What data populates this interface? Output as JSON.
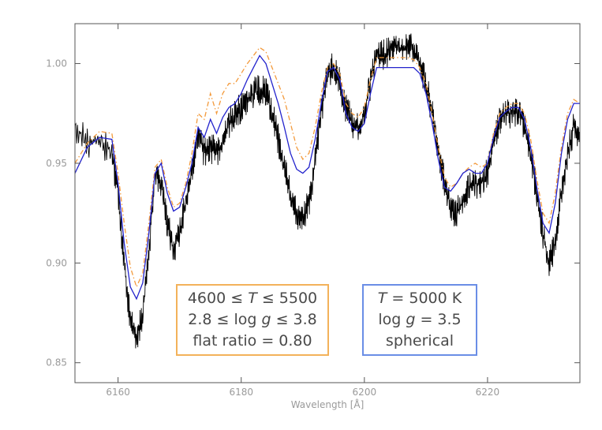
{
  "chart_data": {
    "type": "line",
    "title": "",
    "xlabel": "Wavelength [Å]",
    "ylabel": "",
    "xlim": [
      6153,
      6235
    ],
    "ylim": [
      0.84,
      1.02
    ],
    "grid": false,
    "xticks": [
      6160,
      6180,
      6200,
      6220
    ],
    "yticks": [
      0.85,
      0.9,
      0.95,
      1.0
    ],
    "xtick_labels": [
      "6160",
      "6180",
      "6200",
      "6220"
    ],
    "ytick_labels": [
      "0.85",
      "0.90",
      "0.95",
      "1.00"
    ],
    "series": [
      {
        "style": "solid-noisy",
        "color": "#000000",
        "x": [
          6153,
          6155,
          6157,
          6159,
          6160,
          6161,
          6162,
          6163,
          6164,
          6165,
          6166,
          6167,
          6168,
          6169,
          6170,
          6171,
          6172,
          6173,
          6174,
          6175,
          6176,
          6177,
          6178,
          6179,
          6180,
          6181,
          6182,
          6183,
          6184,
          6185,
          6186,
          6187,
          6188,
          6189,
          6190,
          6191,
          6192,
          6193,
          6194,
          6195,
          6196,
          6197,
          6198,
          6199,
          6200,
          6201,
          6202,
          6203,
          6204,
          6205,
          6206,
          6207,
          6208,
          6209,
          6210,
          6211,
          6212,
          6213,
          6214,
          6215,
          6216,
          6217,
          6218,
          6219,
          6220,
          6221,
          6222,
          6223,
          6224,
          6225,
          6226,
          6227,
          6228,
          6229,
          6230,
          6231,
          6232,
          6233,
          6234,
          6235
        ],
        "y": [
          0.969,
          0.96,
          0.962,
          0.955,
          0.935,
          0.9,
          0.87,
          0.862,
          0.875,
          0.905,
          0.945,
          0.94,
          0.92,
          0.907,
          0.915,
          0.93,
          0.945,
          0.965,
          0.955,
          0.958,
          0.955,
          0.96,
          0.97,
          0.975,
          0.978,
          0.981,
          0.985,
          0.987,
          0.986,
          0.975,
          0.962,
          0.948,
          0.934,
          0.924,
          0.922,
          0.93,
          0.95,
          0.975,
          0.995,
          0.998,
          0.99,
          0.978,
          0.97,
          0.968,
          0.975,
          0.99,
          1.005,
          1.004,
          1.006,
          1.008,
          1.007,
          1.009,
          1.007,
          1.0,
          0.99,
          0.975,
          0.958,
          0.94,
          0.928,
          0.925,
          0.93,
          0.938,
          0.94,
          0.94,
          0.945,
          0.96,
          0.972,
          0.975,
          0.975,
          0.975,
          0.97,
          0.955,
          0.935,
          0.915,
          0.9,
          0.91,
          0.935,
          0.955,
          0.968,
          0.965
        ]
      },
      {
        "style": "dash-dot",
        "color": "#f39a3c",
        "x": [
          6153,
          6155,
          6157,
          6159,
          6160,
          6161,
          6162,
          6163,
          6164,
          6165,
          6166,
          6167,
          6168,
          6169,
          6170,
          6171,
          6172,
          6173,
          6174,
          6175,
          6176,
          6177,
          6178,
          6179,
          6180,
          6181,
          6182,
          6183,
          6184,
          6185,
          6186,
          6187,
          6188,
          6189,
          6190,
          6191,
          6192,
          6193,
          6194,
          6195,
          6196,
          6197,
          6198,
          6199,
          6200,
          6201,
          6202,
          6203,
          6204,
          6205,
          6206,
          6207,
          6208,
          6209,
          6210,
          6211,
          6212,
          6213,
          6214,
          6215,
          6216,
          6217,
          6218,
          6219,
          6220,
          6221,
          6222,
          6223,
          6224,
          6225,
          6226,
          6227,
          6228,
          6229,
          6230,
          6231,
          6232,
          6233,
          6234,
          6235
        ],
        "y": [
          0.95,
          0.96,
          0.966,
          0.965,
          0.945,
          0.92,
          0.898,
          0.888,
          0.895,
          0.92,
          0.948,
          0.952,
          0.938,
          0.928,
          0.93,
          0.94,
          0.955,
          0.975,
          0.972,
          0.985,
          0.975,
          0.985,
          0.99,
          0.99,
          0.995,
          1.0,
          1.004,
          1.008,
          1.006,
          0.998,
          0.99,
          0.982,
          0.97,
          0.958,
          0.952,
          0.955,
          0.968,
          0.985,
          0.998,
          1.0,
          0.995,
          0.98,
          0.975,
          0.973,
          0.978,
          0.992,
          1.003,
          1.003,
          1.003,
          1.003,
          1.003,
          1.003,
          1.002,
          0.998,
          0.99,
          0.975,
          0.958,
          0.943,
          0.938,
          0.94,
          0.945,
          0.948,
          0.95,
          0.948,
          0.95,
          0.965,
          0.975,
          0.978,
          0.98,
          0.98,
          0.975,
          0.962,
          0.942,
          0.925,
          0.92,
          0.935,
          0.958,
          0.975,
          0.982,
          0.98
        ]
      },
      {
        "style": "solid",
        "color": "#2222cc",
        "x": [
          6153,
          6155,
          6157,
          6159,
          6160,
          6161,
          6162,
          6163,
          6164,
          6165,
          6166,
          6167,
          6168,
          6169,
          6170,
          6171,
          6172,
          6173,
          6174,
          6175,
          6176,
          6177,
          6178,
          6179,
          6180,
          6181,
          6182,
          6183,
          6184,
          6185,
          6186,
          6187,
          6188,
          6189,
          6190,
          6191,
          6192,
          6193,
          6194,
          6195,
          6196,
          6197,
          6198,
          6199,
          6200,
          6201,
          6202,
          6203,
          6204,
          6205,
          6206,
          6207,
          6208,
          6209,
          6210,
          6211,
          6212,
          6213,
          6214,
          6215,
          6216,
          6217,
          6218,
          6219,
          6220,
          6221,
          6222,
          6223,
          6224,
          6225,
          6226,
          6227,
          6228,
          6229,
          6230,
          6231,
          6232,
          6233,
          6234,
          6235
        ],
        "y": [
          0.945,
          0.958,
          0.963,
          0.962,
          0.94,
          0.91,
          0.888,
          0.882,
          0.89,
          0.915,
          0.945,
          0.95,
          0.935,
          0.926,
          0.928,
          0.938,
          0.95,
          0.968,
          0.963,
          0.972,
          0.965,
          0.973,
          0.978,
          0.98,
          0.985,
          0.992,
          0.998,
          1.004,
          1.0,
          0.99,
          0.98,
          0.968,
          0.955,
          0.947,
          0.945,
          0.948,
          0.962,
          0.98,
          0.996,
          0.998,
          0.992,
          0.975,
          0.968,
          0.966,
          0.97,
          0.985,
          0.998,
          0.998,
          0.998,
          0.998,
          0.998,
          0.998,
          0.998,
          0.995,
          0.985,
          0.97,
          0.952,
          0.938,
          0.936,
          0.94,
          0.945,
          0.947,
          0.945,
          0.945,
          0.95,
          0.963,
          0.973,
          0.976,
          0.978,
          0.978,
          0.972,
          0.958,
          0.938,
          0.92,
          0.915,
          0.93,
          0.955,
          0.972,
          0.98,
          0.98
        ]
      }
    ]
  },
  "legends": {
    "orange": {
      "border_color": "#f3b25a",
      "line1_a": "4600 ≤ ",
      "line1_b": "T",
      "line1_c": " ≤ 5500",
      "line2_a": "2.8 ≤ log ",
      "line2_b": "g",
      "line2_c": " ≤ 3.8",
      "line3": "flat ratio = 0.80"
    },
    "blue": {
      "border_color": "#6a8ee6",
      "line1_a": "T",
      "line1_b": " = 5000 K",
      "line2_a": "log ",
      "line2_b": "g",
      "line2_c": " = 3.5",
      "line3": "spherical"
    }
  }
}
